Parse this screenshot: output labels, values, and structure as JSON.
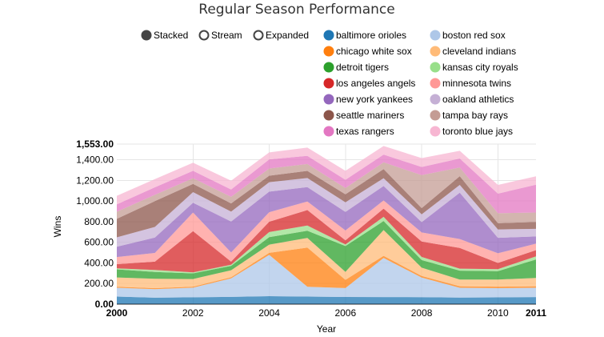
{
  "chart_data": {
    "type": "area",
    "title": "Regular Season Performance",
    "xlabel": "Year",
    "ylabel": "Wins",
    "x": [
      2000,
      2001,
      2002,
      2003,
      2004,
      2005,
      2006,
      2007,
      2008,
      2009,
      2010,
      2011
    ],
    "xticks": [
      "2000",
      "2002",
      "2004",
      "2006",
      "2008",
      "2010",
      "2011"
    ],
    "xlim": [
      2000,
      2011
    ],
    "ylim": [
      0,
      1553
    ],
    "yticks": [
      "0.00",
      "200.00",
      "400.00",
      "600.00",
      "800.00",
      "1,000.00",
      "1,200.00",
      "1,400.00",
      "1,553.00"
    ],
    "grid": true,
    "stacked": true,
    "legend_position": "top",
    "controls": [
      {
        "label": "Stacked",
        "selected": true
      },
      {
        "label": "Stream",
        "selected": false
      },
      {
        "label": "Expanded",
        "selected": false
      }
    ],
    "series": [
      {
        "name": "baltimore orioles",
        "color": "#1f77b4",
        "values": [
          74,
          63,
          67,
          71,
          78,
          74,
          70,
          69,
          68,
          64,
          66,
          69
        ]
      },
      {
        "name": "boston red sox",
        "color": "#aec7e8",
        "values": [
          85,
          82,
          93,
          180,
          400,
          95,
          86,
          380,
          190,
          95,
          89,
          90
        ]
      },
      {
        "name": "chicago white sox",
        "color": "#ff7f0e",
        "values": [
          10,
          10,
          10,
          10,
          20,
          380,
          80,
          20,
          15,
          15,
          15,
          15
        ]
      },
      {
        "name": "cleveland indians",
        "color": "#ffbb78",
        "values": [
          90,
          91,
          74,
          68,
          80,
          93,
          78,
          250,
          81,
          65,
          69,
          80
        ]
      },
      {
        "name": "detroit tigers",
        "color": "#2ca02c",
        "values": [
          79,
          66,
          55,
          43,
          72,
          71,
          250,
          88,
          74,
          86,
          81,
          180
        ]
      },
      {
        "name": "kansas city royals",
        "color": "#98df8a",
        "values": [
          10,
          20,
          10,
          10,
          50,
          50,
          15,
          40,
          30,
          20,
          20,
          30
        ]
      },
      {
        "name": "los angeles angels",
        "color": "#d62728",
        "values": [
          40,
          80,
          400,
          30,
          100,
          150,
          40,
          80,
          150,
          200,
          60,
          60
        ]
      },
      {
        "name": "minnesota twins",
        "color": "#ff9896",
        "values": [
          69,
          85,
          180,
          90,
          92,
          83,
          96,
          79,
          88,
          87,
          94,
          63
        ]
      },
      {
        "name": "new york yankees",
        "color": "#9467bd",
        "values": [
          100,
          150,
          95,
          300,
          200,
          140,
          180,
          140,
          100,
          450,
          150,
          70
        ]
      },
      {
        "name": "oakland athletics",
        "color": "#c5b0d5",
        "values": [
          91,
          102,
          103,
          96,
          91,
          88,
          93,
          76,
          75,
          75,
          81,
          74
        ]
      },
      {
        "name": "seattle mariners",
        "color": "#8c564b",
        "values": [
          180,
          250,
          80,
          80,
          63,
          69,
          78,
          88,
          61,
          85,
          61,
          67
        ]
      },
      {
        "name": "tampa bay rays",
        "color": "#c49c94",
        "values": [
          69,
          62,
          55,
          63,
          70,
          67,
          61,
          66,
          320,
          84,
          96,
          91
        ]
      },
      {
        "name": "texas rangers",
        "color": "#e377c2",
        "values": [
          71,
          73,
          72,
          71,
          89,
          79,
          80,
          75,
          79,
          87,
          190,
          270
        ]
      },
      {
        "name": "toronto blue jays",
        "color": "#f7b6d2",
        "values": [
          83,
          80,
          78,
          86,
          67,
          80,
          87,
          83,
          86,
          75,
          85,
          81
        ]
      }
    ]
  }
}
